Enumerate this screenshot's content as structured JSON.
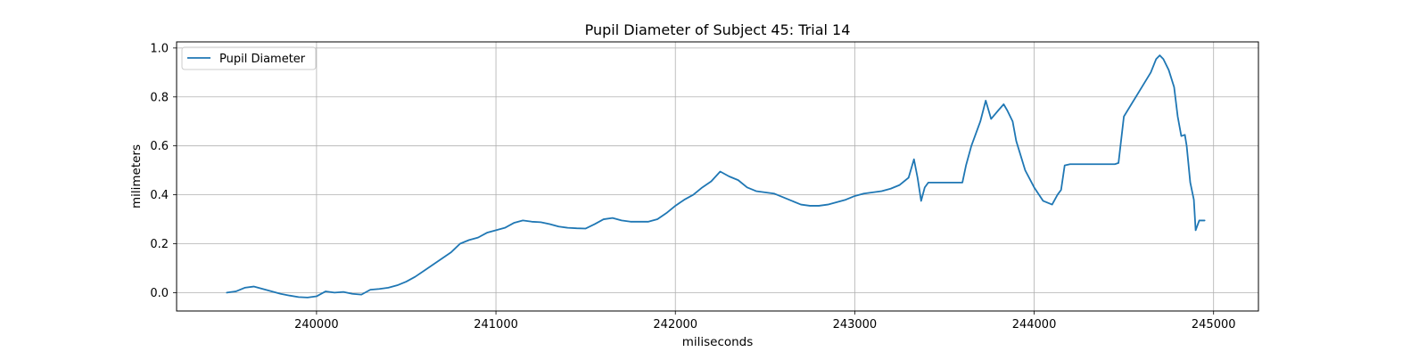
{
  "chart_data": {
    "type": "line",
    "title": "Pupil Diameter of Subject 45: Trial 14",
    "xlabel": "miliseconds",
    "ylabel": "milimeters",
    "xlim": [
      239220,
      245250
    ],
    "ylim": [
      -0.075,
      1.025
    ],
    "xticks": [
      240000,
      241000,
      242000,
      243000,
      244000,
      245000
    ],
    "yticks": [
      0.0,
      0.2,
      0.4,
      0.6,
      0.8,
      1.0
    ],
    "xtick_labels": [
      "240000",
      "241000",
      "242000",
      "243000",
      "244000",
      "245000"
    ],
    "ytick_labels": [
      "0.0",
      "0.2",
      "0.4",
      "0.6",
      "0.8",
      "1.0"
    ],
    "grid": true,
    "legend": {
      "position": "top-left",
      "entries": [
        "Pupil Diameter"
      ]
    },
    "series": [
      {
        "name": "Pupil Diameter",
        "color": "#1f77b4",
        "x": [
          239500,
          239550,
          239600,
          239650,
          239700,
          239750,
          239800,
          239850,
          239900,
          239950,
          240000,
          240050,
          240100,
          240150,
          240200,
          240250,
          240300,
          240350,
          240400,
          240450,
          240500,
          240550,
          240600,
          240650,
          240700,
          240750,
          240800,
          240850,
          240900,
          240950,
          241000,
          241050,
          241100,
          241150,
          241200,
          241250,
          241300,
          241350,
          241400,
          241450,
          241500,
          241550,
          241600,
          241650,
          241700,
          241750,
          241800,
          241850,
          241900,
          241950,
          242000,
          242050,
          242100,
          242150,
          242200,
          242250,
          242300,
          242350,
          242400,
          242450,
          242500,
          242550,
          242600,
          242650,
          242700,
          242750,
          242800,
          242850,
          242900,
          242950,
          243000,
          243050,
          243100,
          243150,
          243200,
          243250,
          243300,
          243330,
          243350,
          243370,
          243390,
          243410,
          243440,
          243500,
          243550,
          243600,
          243620,
          243650,
          243700,
          243730,
          243760,
          243800,
          243830,
          243850,
          243880,
          243900,
          243950,
          244000,
          244050,
          244100,
          244130,
          244150,
          244170,
          244200,
          244300,
          244450,
          244470,
          244500,
          244550,
          244600,
          244650,
          244680,
          244700,
          244720,
          244750,
          244780,
          244800,
          244820,
          244840,
          244850,
          244870,
          244890,
          244900,
          244920,
          244950
        ],
        "values": [
          0.0,
          0.005,
          0.02,
          0.025,
          0.015,
          0.005,
          -0.005,
          -0.012,
          -0.018,
          -0.02,
          -0.015,
          0.005,
          0.0,
          0.003,
          -0.005,
          -0.008,
          0.012,
          0.015,
          0.02,
          0.03,
          0.045,
          0.065,
          0.09,
          0.115,
          0.14,
          0.165,
          0.2,
          0.215,
          0.225,
          0.245,
          0.255,
          0.265,
          0.285,
          0.295,
          0.29,
          0.288,
          0.28,
          0.27,
          0.265,
          0.263,
          0.262,
          0.28,
          0.3,
          0.305,
          0.295,
          0.29,
          0.29,
          0.29,
          0.3,
          0.325,
          0.355,
          0.38,
          0.4,
          0.43,
          0.455,
          0.495,
          0.475,
          0.46,
          0.43,
          0.415,
          0.41,
          0.405,
          0.39,
          0.375,
          0.36,
          0.355,
          0.355,
          0.36,
          0.37,
          0.38,
          0.395,
          0.405,
          0.41,
          0.415,
          0.425,
          0.44,
          0.47,
          0.545,
          0.47,
          0.375,
          0.43,
          0.45,
          0.45,
          0.45,
          0.45,
          0.45,
          0.52,
          0.6,
          0.7,
          0.785,
          0.71,
          0.745,
          0.77,
          0.745,
          0.7,
          0.62,
          0.5,
          0.43,
          0.375,
          0.36,
          0.4,
          0.42,
          0.52,
          0.525,
          0.525,
          0.525,
          0.53,
          0.72,
          0.78,
          0.84,
          0.9,
          0.955,
          0.97,
          0.955,
          0.91,
          0.84,
          0.72,
          0.64,
          0.645,
          0.6,
          0.45,
          0.38,
          0.255,
          0.295,
          0.295
        ]
      }
    ]
  }
}
